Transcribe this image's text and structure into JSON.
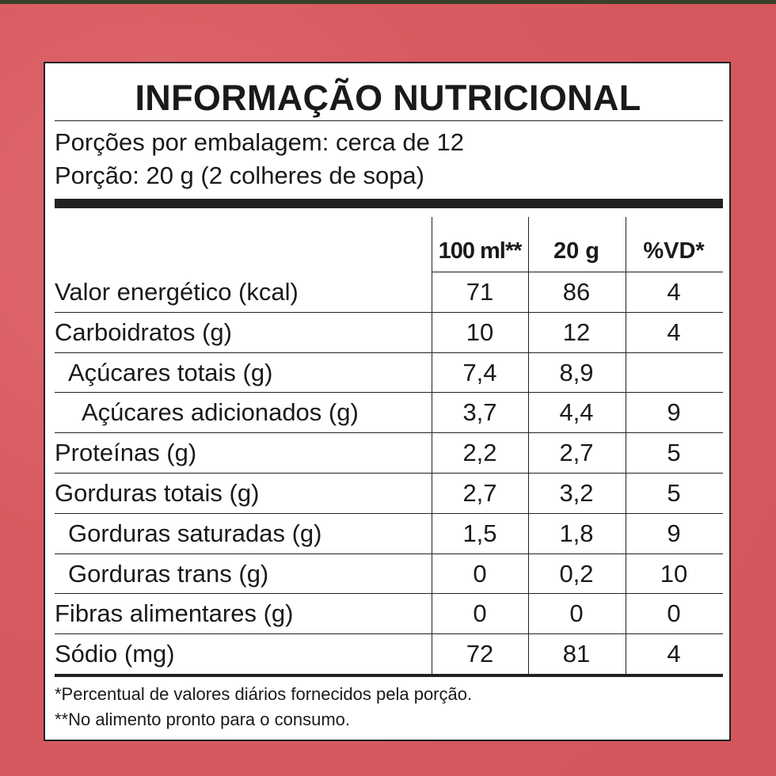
{
  "header": {
    "title": "INFORMAÇÃO NUTRICIONAL",
    "servings": [
      "Porções por embalagem: cerca de 12",
      "Porção: 20 g (2 colheres de sopa)"
    ]
  },
  "table": {
    "columns": [
      "100 ml**",
      "20 g",
      "%VD*"
    ],
    "rows": [
      [
        "Valor energético (kcal)",
        "71",
        "86",
        "4"
      ],
      [
        "Carboidratos (g)",
        "10",
        "12",
        "4"
      ],
      [
        "Açúcares totais (g)",
        "7,4",
        "8,9",
        null
      ],
      [
        "Açúcares adicionados (g)",
        "3,7",
        "4,4",
        "9"
      ],
      [
        "Proteínas (g)",
        "2,2",
        "2,7",
        "5"
      ],
      [
        "Gorduras totais (g)",
        "2,7",
        "3,2",
        "5"
      ],
      [
        "Gorduras saturadas (g)",
        "1,5",
        "1,8",
        "9"
      ],
      [
        "Gorduras trans (g)",
        "0",
        "0,2",
        "10"
      ],
      [
        "Fibras alimentares (g)",
        "0",
        "0",
        "0"
      ],
      [
        "Sódio (mg)",
        "72",
        "81",
        "4"
      ]
    ]
  },
  "footnotes": [
    "*Percentual de valores diários fornecidos pela porção.",
    "**No alimento pronto para o consumo."
  ]
}
